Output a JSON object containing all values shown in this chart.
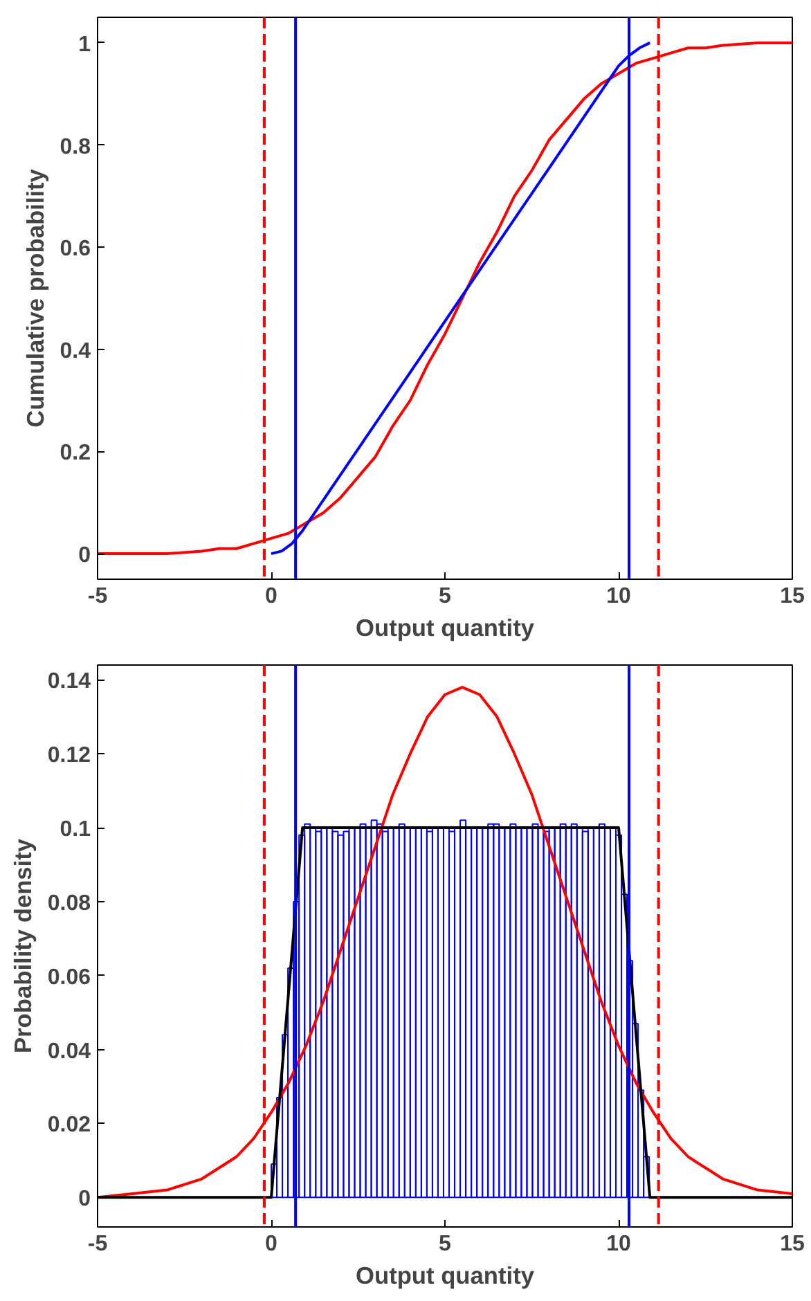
{
  "chart_data": [
    {
      "type": "line",
      "xlabel": "Output quantity",
      "ylabel": "Cumulative probability",
      "xlim": [
        -5,
        15
      ],
      "ylim": [
        -0.05,
        1.05
      ],
      "xticks": [
        -5,
        0,
        5,
        10,
        15
      ],
      "yticks": [
        0,
        0.2,
        0.4,
        0.6,
        0.8,
        1
      ],
      "series": [
        {
          "color": "#ff0000",
          "x": [
            -5,
            -4,
            -3,
            -2,
            -1.5,
            -1,
            -0.5,
            0,
            0.5,
            1,
            1.5,
            2,
            2.5,
            3,
            3.5,
            4,
            4.5,
            5,
            5.5,
            6,
            6.5,
            7,
            7.5,
            8,
            8.5,
            9,
            9.5,
            10,
            10.5,
            11,
            11.5,
            12,
            12.5,
            13,
            14,
            15
          ],
          "values": [
            0,
            0,
            0,
            0.005,
            0.01,
            0.01,
            0.02,
            0.03,
            0.04,
            0.06,
            0.08,
            0.11,
            0.15,
            0.19,
            0.25,
            0.3,
            0.37,
            0.43,
            0.5,
            0.57,
            0.63,
            0.7,
            0.75,
            0.81,
            0.85,
            0.89,
            0.92,
            0.94,
            0.96,
            0.97,
            0.98,
            0.99,
            0.99,
            0.995,
            1,
            1
          ]
        },
        {
          "color": "#0000ff",
          "x": [
            0,
            0.3,
            0.6,
            0.9,
            2,
            4,
            6,
            8,
            10,
            10.3,
            10.6,
            10.9
          ],
          "values": [
            0,
            0.005,
            0.02,
            0.045,
            0.155,
            0.355,
            0.555,
            0.755,
            0.955,
            0.975,
            0.99,
            1
          ]
        }
      ],
      "ref_lines": [
        {
          "axis": "x",
          "value": -0.2,
          "color": "#ff0000",
          "line_style": "dashed"
        },
        {
          "axis": "x",
          "value": 0.7,
          "color": "#0000ff",
          "line_style": "solid"
        },
        {
          "axis": "x",
          "value": 10.3,
          "color": "#0000ff",
          "line_style": "solid"
        },
        {
          "axis": "x",
          "value": 11.15,
          "color": "#ff0000",
          "line_style": "dashed"
        }
      ]
    },
    {
      "type": "histogram",
      "xlabel": "Output quantity",
      "ylabel": "Probability density",
      "xlim": [
        -5,
        15
      ],
      "ylim": [
        -0.008,
        0.144
      ],
      "xticks": [
        -5,
        0,
        5,
        10,
        15
      ],
      "yticks": [
        0,
        0.02,
        0.04,
        0.06,
        0.08,
        0.1,
        0.12,
        0.14
      ],
      "series": [
        {
          "type": "histogram",
          "color": "#0000ff",
          "bins": [
            0,
            0.16,
            0.32,
            0.48,
            0.64,
            0.8,
            0.96,
            1.12,
            1.28,
            1.44,
            1.6,
            1.76,
            1.92,
            2.08,
            2.24,
            2.4,
            2.56,
            2.72,
            2.88,
            3.04,
            3.2,
            3.36,
            3.52,
            3.68,
            3.84,
            4,
            4.16,
            4.32,
            4.48,
            4.64,
            4.8,
            4.96,
            5.12,
            5.28,
            5.44,
            5.6,
            5.76,
            5.92,
            6.08,
            6.24,
            6.4,
            6.56,
            6.72,
            6.88,
            7.04,
            7.2,
            7.36,
            7.52,
            7.68,
            7.84,
            8,
            8.16,
            8.32,
            8.48,
            8.64,
            8.8,
            8.96,
            9.12,
            9.28,
            9.44,
            9.6,
            9.76,
            9.92,
            10.08,
            10.24,
            10.4,
            10.56,
            10.72,
            10.88
          ],
          "values": [
            0.009,
            0.027,
            0.044,
            0.062,
            0.08,
            0.098,
            0.101,
            0.1,
            0.099,
            0.1,
            0.1,
            0.099,
            0.098,
            0.099,
            0.1,
            0.1,
            0.101,
            0.1,
            0.102,
            0.101,
            0.099,
            0.1,
            0.1,
            0.101,
            0.1,
            0.1,
            0.1,
            0.1,
            0.099,
            0.1,
            0.1,
            0.1,
            0.099,
            0.1,
            0.102,
            0.1,
            0.1,
            0.1,
            0.1,
            0.101,
            0.101,
            0.1,
            0.1,
            0.101,
            0.1,
            0.1,
            0.1,
            0.101,
            0.1,
            0.099,
            0.1,
            0.1,
            0.101,
            0.1,
            0.101,
            0.1,
            0.099,
            0.1,
            0.1,
            0.101,
            0.1,
            0.1,
            0.098,
            0.082,
            0.064,
            0.047,
            0.029,
            0.011
          ]
        },
        {
          "type": "line",
          "color": "#ff0000",
          "x": [
            -5,
            -4,
            -3,
            -2,
            -1.5,
            -1,
            -0.5,
            0,
            0.5,
            1,
            1.5,
            2,
            2.5,
            3,
            3.5,
            4,
            4.5,
            5,
            5.5,
            6,
            6.5,
            7,
            7.5,
            8,
            8.5,
            9,
            9.5,
            10,
            10.5,
            11,
            11.5,
            12,
            12.5,
            13,
            14,
            15
          ],
          "values": [
            0,
            0.001,
            0.002,
            0.005,
            0.008,
            0.011,
            0.016,
            0.023,
            0.031,
            0.041,
            0.053,
            0.067,
            0.081,
            0.095,
            0.109,
            0.12,
            0.13,
            0.136,
            0.138,
            0.136,
            0.13,
            0.12,
            0.109,
            0.095,
            0.081,
            0.067,
            0.053,
            0.041,
            0.031,
            0.023,
            0.016,
            0.011,
            0.008,
            0.005,
            0.002,
            0.001
          ]
        },
        {
          "type": "line",
          "color": "#000000",
          "x": [
            -5,
            0,
            0.9,
            10,
            10.9,
            15
          ],
          "values": [
            0,
            0,
            0.1,
            0.1,
            0,
            0
          ]
        }
      ],
      "ref_lines": [
        {
          "axis": "x",
          "value": -0.2,
          "color": "#ff0000",
          "line_style": "dashed"
        },
        {
          "axis": "x",
          "value": 0.7,
          "color": "#0000ff",
          "line_style": "solid"
        },
        {
          "axis": "x",
          "value": 10.3,
          "color": "#0000ff",
          "line_style": "solid"
        },
        {
          "axis": "x",
          "value": 11.15,
          "color": "#ff0000",
          "line_style": "dashed"
        }
      ]
    }
  ]
}
